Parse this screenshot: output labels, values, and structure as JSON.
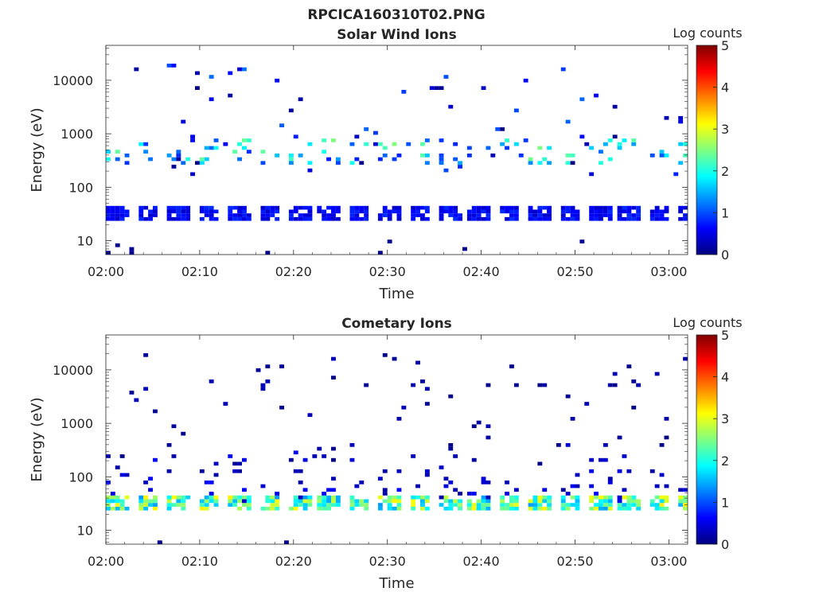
{
  "figure_title": "RPCICA160310T02.PNG",
  "colormap": [
    "#000080",
    "#0000ff",
    "#0080ff",
    "#00ffff",
    "#80ff80",
    "#ffff00",
    "#ff8000",
    "#ff0000",
    "#800000"
  ],
  "chart_data": [
    {
      "type": "heatmap",
      "title": "Solar Wind Ions",
      "xlabel": "Time",
      "ylabel": "Energy (eV)",
      "colorbar_label": "Log counts",
      "colorbar_ticks": [
        "0",
        "1",
        "2",
        "3",
        "4",
        "5"
      ],
      "colorbar_range": [
        0,
        5
      ],
      "x_ticks": [
        "02:00",
        "02:10",
        "02:20",
        "02:30",
        "02:40",
        "02:50",
        "03:00"
      ],
      "xlim_minutes": [
        0,
        62
      ],
      "y_ticks": [
        "10",
        "100",
        "1000",
        "10000"
      ],
      "ylim_eV": [
        5.5,
        45000
      ],
      "y_scale": "log",
      "bands": [
        {
          "name": "low-energy band",
          "center_eV": 30,
          "level": 0.6
        },
        {
          "name": "mid-energy bursts",
          "center_eV": 450,
          "level": 1.8
        },
        {
          "name": "upper scatter",
          "center_eV": 1400,
          "level": 1.2
        }
      ]
    },
    {
      "type": "heatmap",
      "title": "Cometary Ions",
      "xlabel": "Time",
      "ylabel": "Energy (eV)",
      "colorbar_label": "Log counts",
      "colorbar_ticks": [
        "0",
        "1",
        "2",
        "3",
        "4",
        "5"
      ],
      "colorbar_range": [
        0,
        5
      ],
      "x_ticks": [
        "02:00",
        "02:10",
        "02:20",
        "02:30",
        "02:40",
        "02:50",
        "03:00"
      ],
      "xlim_minutes": [
        0,
        62
      ],
      "y_ticks": [
        "10",
        "100",
        "1000",
        "10000"
      ],
      "ylim_eV": [
        5.5,
        45000
      ],
      "y_scale": "log",
      "bands": [
        {
          "name": "low-energy band",
          "center_eV": 28,
          "level": 2.3
        },
        {
          "name": "vertical streaks",
          "center_eV": 120,
          "level": 0.5
        },
        {
          "name": "upper scatter",
          "center_eV": 1500,
          "level": 0.3
        }
      ]
    }
  ]
}
